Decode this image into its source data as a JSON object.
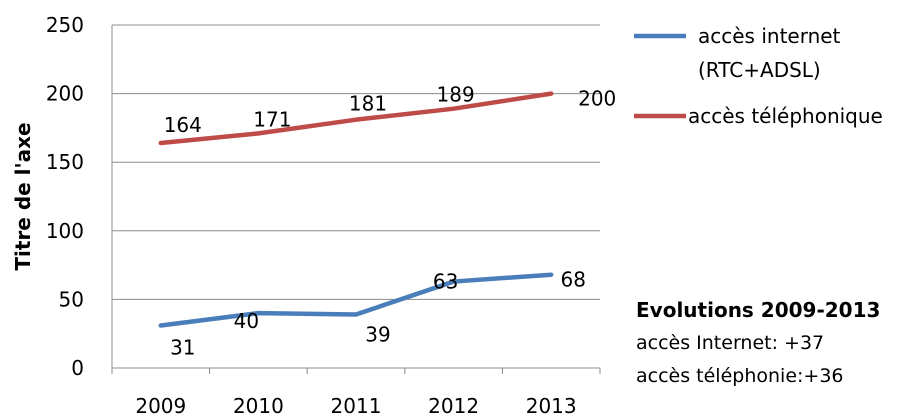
{
  "chart_data": {
    "type": "line",
    "title": "",
    "xlabel": "",
    "ylabel": "Titre de l'axe",
    "categories": [
      "2009",
      "2010",
      "2011",
      "2012",
      "2013"
    ],
    "ylim": [
      0,
      250
    ],
    "yticks": [
      0,
      50,
      100,
      150,
      200,
      250
    ],
    "grid": true,
    "legend_position": "right",
    "series": [
      {
        "name": "accès internet (RTC+ADSL)",
        "legend_lines": [
          "accès internet",
          "(RTC+ADSL)"
        ],
        "values": [
          31,
          40,
          39,
          63,
          68
        ],
        "color": "#4a7ebb"
      },
      {
        "name": "accès téléphonique",
        "legend_lines": [
          "accès téléphonique"
        ],
        "values": [
          164,
          171,
          181,
          189,
          200
        ],
        "color": "#be4b48"
      }
    ]
  },
  "summary": {
    "title": "Evolutions 2009-2013",
    "lines": [
      "accès Internet: +37",
      "accès téléphonie:+36"
    ]
  },
  "colors": {
    "gridline": "#8c8c8c",
    "axis": "#8c8c8c"
  }
}
